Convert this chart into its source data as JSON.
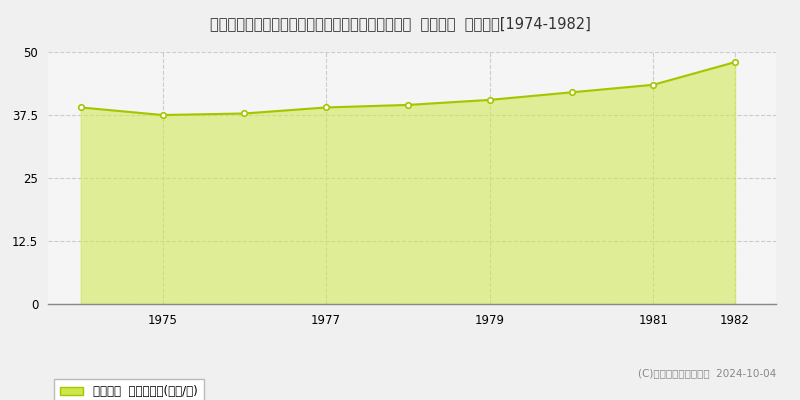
{
  "title": "北海道札幌市中央区北１条西２４丁目２８３番３２  公示地価  地価推移[1974-1982]",
  "years": [
    1974,
    1975,
    1976,
    1977,
    1978,
    1979,
    1980,
    1981,
    1982
  ],
  "values": [
    39.0,
    37.5,
    37.8,
    39.0,
    39.5,
    40.5,
    42.0,
    43.5,
    48.0
  ],
  "ylim": [
    0,
    50
  ],
  "yticks": [
    0,
    12.5,
    25,
    37.5,
    50
  ],
  "xticks": [
    1975,
    1977,
    1979,
    1981,
    1982
  ],
  "fill_color": "#cde84a",
  "fill_alpha": 0.55,
  "line_color": "#a8c400",
  "line_width": 1.5,
  "marker_color": "white",
  "marker_edge_color": "#a8c400",
  "marker_size": 4,
  "grid_color": "#cccccc",
  "plot_bg_color": "#f5f5f5",
  "fig_bg_color": "#f0f0f0",
  "legend_label": "公示地価  平均坪単価(万円/坪)",
  "copyright_text": "(C)土地価格ドットコム  2024-10-04",
  "title_fontsize": 10.5,
  "axis_fontsize": 8.5,
  "legend_fontsize": 8.5
}
